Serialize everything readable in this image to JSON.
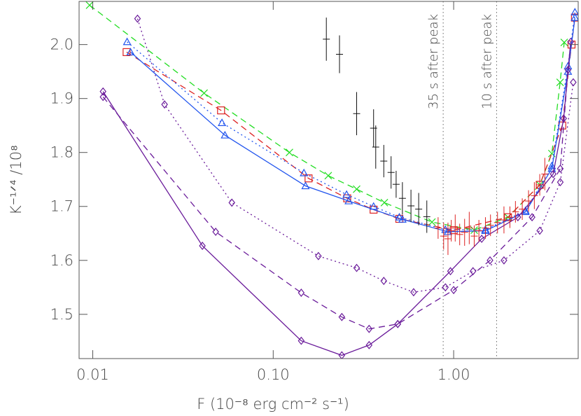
{
  "chart_data": {
    "type": "line",
    "x_label": "F (10⁻⁸ erg cm⁻² s⁻¹)",
    "y_label": "K⁻¹ᐟ⁴ /10⁸",
    "log_x": true,
    "xlim": [
      0.0084,
      4.9
    ],
    "ylim": [
      1.418,
      2.08
    ],
    "xticks": [
      {
        "value": 0.01,
        "label": "0.01"
      },
      {
        "value": 0.1,
        "label": "0.10"
      },
      {
        "value": 1,
        "label": "1.00"
      }
    ],
    "yticks": [
      1.5,
      1.6,
      1.7,
      1.8,
      1.9,
      {
        "value": 2,
        "label": "2.0"
      }
    ],
    "annotations": [
      {
        "text": "35 s after peak",
        "x": 0.875
      },
      {
        "text": "10 s after peak",
        "x": 1.73
      }
    ],
    "series": [
      {
        "color": "#22dd22",
        "dash": "dashed",
        "marker": "x",
        "x": [
          0.0096,
          0.0414,
          0.123,
          0.2018,
          0.29,
          0.413,
          0.758,
          1.3,
          2.0,
          3.0,
          3.5,
          3.89,
          4.1
        ],
        "values": [
          2.073,
          1.91,
          1.8,
          1.757,
          1.732,
          1.707,
          1.671,
          1.656,
          1.68,
          1.74,
          1.798,
          1.93,
          2.004
        ]
      },
      {
        "color": "#dd2222",
        "dash": "dashed",
        "marker": "square",
        "x": [
          0.0154,
          0.0514,
          0.157,
          0.257,
          0.36,
          0.5,
          1.0,
          2.0,
          3.0,
          4.0,
          4.5,
          4.7
        ],
        "values": [
          1.986,
          1.878,
          1.752,
          1.715,
          1.694,
          1.677,
          1.656,
          1.68,
          1.74,
          1.85,
          2.0,
          2.05
        ]
      },
      {
        "color": "#2255ee",
        "dash": "dotted",
        "marker": "triangle",
        "x": [
          0.0155,
          0.052,
          0.148,
          0.255,
          0.36,
          0.5,
          0.9,
          1.5,
          2.5,
          3.5,
          4.3,
          4.7
        ],
        "values": [
          2.005,
          1.855,
          1.762,
          1.722,
          1.7,
          1.68,
          1.657,
          1.657,
          1.692,
          1.775,
          1.96,
          2.06
        ]
      },
      {
        "color": "#2255ee",
        "dash": "solid",
        "marker": "triangle",
        "x": [
          0.0162,
          0.054,
          0.151,
          0.262,
          0.52,
          0.93,
          1.5,
          2.5,
          3.5,
          4.3,
          4.7
        ],
        "values": [
          1.986,
          1.832,
          1.738,
          1.71,
          1.676,
          1.653,
          1.655,
          1.69,
          1.77,
          1.95,
          2.05
        ]
      },
      {
        "color": "#6a1b9a",
        "dash": "solid",
        "marker": "diamond",
        "x": [
          0.0114,
          0.0405,
          0.143,
          0.24,
          0.34,
          0.49,
          0.96,
          1.43,
          2.27,
          3.56,
          4.07,
          4.45
        ],
        "values": [
          1.913,
          1.627,
          1.451,
          1.424,
          1.443,
          1.482,
          1.58,
          1.64,
          1.68,
          1.76,
          1.863,
          2.005
        ]
      },
      {
        "color": "#6a1b9a",
        "dash": "dashed",
        "marker": "diamond",
        "x": [
          0.0114,
          0.048,
          0.143,
          0.24,
          0.34,
          0.49,
          1.0,
          1.59,
          2.72,
          3.9,
          4.3
        ],
        "values": [
          1.903,
          1.653,
          1.54,
          1.495,
          1.473,
          1.482,
          1.545,
          1.6,
          1.68,
          1.77,
          1.953
        ]
      },
      {
        "color": "#6a1b9a",
        "dash": "dotted",
        "marker": "diamond",
        "x": [
          0.0177,
          0.025,
          0.059,
          0.178,
          0.29,
          0.41,
          0.6,
          0.9,
          1.28,
          1.9,
          3.0,
          3.9,
          4.6
        ],
        "values": [
          2.048,
          1.889,
          1.707,
          1.608,
          1.586,
          1.562,
          1.541,
          1.55,
          1.58,
          1.6,
          1.655,
          1.745,
          1.93
        ]
      },
      {
        "color": "#111111",
        "dash": "none",
        "marker": "plus",
        "x": [
          0.197,
          0.233,
          0.29,
          0.36,
          0.37,
          0.41,
          0.45,
          0.48,
          0.52,
          0.58,
          0.64,
          0.71
        ],
        "values": [
          2.01,
          1.982,
          1.872,
          1.845,
          1.81,
          1.784,
          1.763,
          1.741,
          1.715,
          1.701,
          1.695,
          1.681
        ],
        "errors": [
          0.04,
          0.035,
          0.04,
          0.035,
          0.04,
          0.03,
          0.03,
          0.025,
          0.03,
          0.03,
          0.03,
          0.03
        ]
      },
      {
        "color": "#dd2222",
        "dash": "none",
        "marker": "plus",
        "x": [
          0.82,
          0.88,
          0.93,
          0.97,
          1.02,
          1.08,
          1.15,
          1.22,
          1.3,
          1.38,
          1.5,
          1.6,
          1.75,
          1.9,
          2.05,
          2.2,
          2.4,
          2.6,
          2.8,
          3.0,
          3.2
        ],
        "values": [
          1.66,
          1.645,
          1.64,
          1.655,
          1.66,
          1.648,
          1.652,
          1.66,
          1.645,
          1.655,
          1.66,
          1.665,
          1.67,
          1.675,
          1.68,
          1.69,
          1.695,
          1.71,
          1.72,
          1.74,
          1.76
        ],
        "errors": [
          0.02,
          0.025,
          0.03,
          0.02,
          0.025,
          0.02,
          0.025,
          0.03,
          0.02,
          0.02,
          0.02,
          0.02,
          0.02,
          0.025,
          0.02,
          0.02,
          0.02,
          0.02,
          0.025,
          0.02,
          0.03
        ]
      }
    ]
  }
}
